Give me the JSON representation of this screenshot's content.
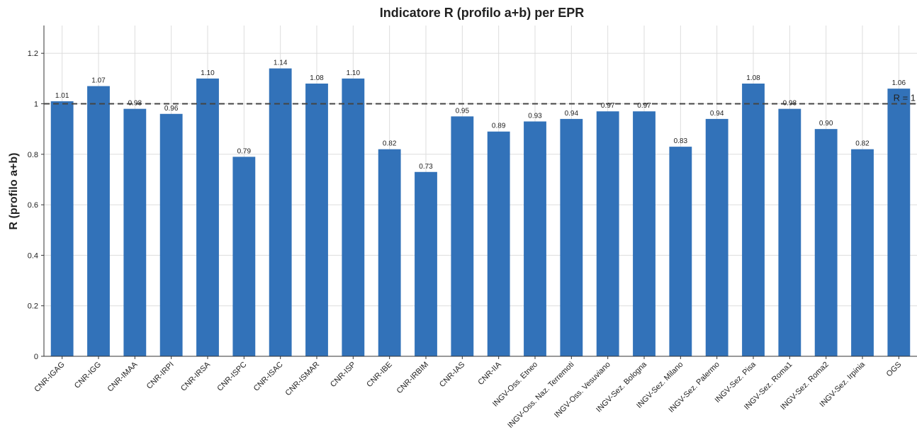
{
  "chart_data": {
    "type": "bar",
    "title": "Indicatore R (profilo a+b) per EPR",
    "y_label": "R (profilo a+b)",
    "categories": [
      "CNR-IGAG",
      "CNR-IGG",
      "CNR-IMAA",
      "CNR-IRPI",
      "CNR-IRSA",
      "CNR-ISPC",
      "CNR-ISAC",
      "CNR-ISMAR",
      "CNR-ISP",
      "CNR-IBE",
      "CNR-IRBIM",
      "CNR-IAS",
      "CNR-IIA",
      "INGV-Oss. Etneo",
      "INGV-Oss. Naz. Terremoti",
      "INGV-Oss. Vesuviano",
      "INGV-Sez. Bologna",
      "INGV-Sez. Milano",
      "INGV-Sez. Palermo",
      "INGV-Sez. Pisa",
      "INGV-Sez. Roma1",
      "INGV-Sez. Roma2",
      "INGV-Sez. Irpinia",
      "OGS"
    ],
    "values": [
      1.01,
      1.07,
      0.98,
      0.96,
      1.1,
      0.79,
      1.14,
      1.08,
      1.1,
      0.82,
      0.73,
      0.95,
      0.89,
      0.93,
      0.94,
      0.97,
      0.97,
      0.83,
      0.94,
      1.08,
      0.98,
      0.9,
      0.82,
      1.06
    ],
    "value_labels": [
      "1.01",
      "1.07",
      "0.98",
      "0.96",
      "1.10",
      "0.79",
      "1.14",
      "1.08",
      "1.10",
      "0.82",
      "0.73",
      "0.95",
      "0.89",
      "0.93",
      "0.94",
      "0.97",
      "0.97",
      "0.83",
      "0.94",
      "1.08",
      "0.98",
      "0.90",
      "0.82",
      "1.06"
    ],
    "color": "#3272b9",
    "ylim": [
      0,
      1.31
    ],
    "yticks": [
      0,
      0.2,
      0.4,
      0.6,
      0.8,
      1,
      1.2
    ],
    "grid": true,
    "reference_line": {
      "value": 1,
      "label": "R = 1"
    }
  }
}
